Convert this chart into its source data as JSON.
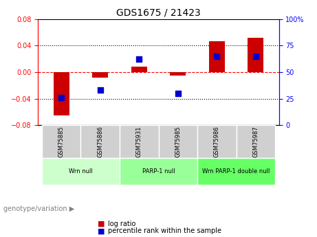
{
  "title": "GDS1675 / 21423",
  "samples": [
    "GSM75885",
    "GSM75886",
    "GSM75931",
    "GSM75985",
    "GSM75986",
    "GSM75987"
  ],
  "log_ratios": [
    -0.065,
    -0.008,
    0.008,
    -0.005,
    0.046,
    0.052
  ],
  "percentile_ranks": [
    26,
    33,
    62,
    30,
    65,
    65
  ],
  "ylim_left": [
    -0.08,
    0.08
  ],
  "ylim_right": [
    0,
    100
  ],
  "yticks_left": [
    -0.08,
    -0.04,
    0,
    0.04,
    0.08
  ],
  "yticks_right": [
    0,
    25,
    50,
    75,
    100
  ],
  "groups": [
    {
      "label": "Wrn null",
      "indices": [
        0,
        1
      ],
      "color": "#ccffcc"
    },
    {
      "label": "PARP-1 null",
      "indices": [
        2,
        3
      ],
      "color": "#99ff99"
    },
    {
      "label": "Wrn PARP-1 double null",
      "indices": [
        4,
        5
      ],
      "color": "#66ff66"
    }
  ],
  "bar_color": "#cc0000",
  "dot_color": "#0000cc",
  "zero_line_color": "#ff0000",
  "grid_line_color": "#000000",
  "bg_color": "#ffffff",
  "plot_bg_color": "#ffffff",
  "tick_area_color": "#d0d0d0",
  "bar_width": 0.4,
  "dot_size": 40
}
